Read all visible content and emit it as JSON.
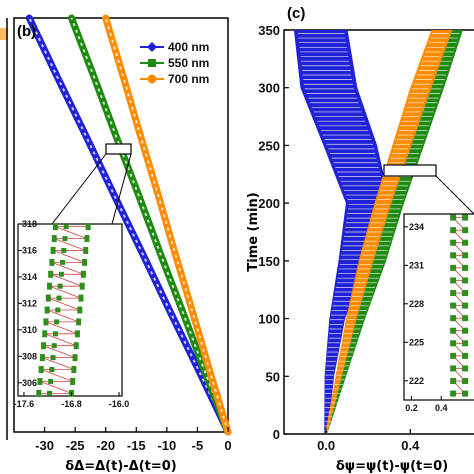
{
  "colors": {
    "blue": "#1f22d6",
    "green": "#1f8a12",
    "orange": "#ff8c00",
    "inset_marker": "#2f8f1c",
    "inset_line": "#d34040"
  },
  "chart_data": [
    {
      "id": "b",
      "type": "scatter",
      "panel_label": "(b)",
      "xlabel": "δΔ=Δ(t)-Δ(t=0)",
      "ylabel": "",
      "xlim": [
        -35,
        0
      ],
      "ylim": [
        0,
        350
      ],
      "xticks": [
        -30,
        -25,
        -20,
        -15,
        -10,
        -5,
        0
      ],
      "xtick_labels": [
        "-30",
        "-25",
        "-20",
        "-15",
        "-10",
        "-5",
        "0"
      ],
      "legend_position": "top-right",
      "series": [
        {
          "name": "400 nm",
          "color": "blue",
          "marker": "diamond",
          "x": [
            0,
            -4.6,
            -9.3,
            -13.9,
            -18.6,
            -23.2,
            -27.9,
            -32.5
          ],
          "y": [
            0,
            50,
            100,
            150,
            200,
            250,
            300,
            350
          ]
        },
        {
          "name": "550 nm",
          "color": "green",
          "marker": "square",
          "x": [
            0,
            -3.7,
            -7.3,
            -11.0,
            -14.6,
            -18.3,
            -21.9,
            -25.6
          ],
          "y": [
            0,
            50,
            100,
            150,
            200,
            250,
            300,
            350
          ]
        },
        {
          "name": "700 nm",
          "color": "orange",
          "marker": "circle",
          "x": [
            0,
            -2.9,
            -5.7,
            -8.6,
            -11.4,
            -14.3,
            -17.1,
            -20.0
          ],
          "y": [
            0,
            50,
            100,
            150,
            200,
            250,
            300,
            350
          ]
        }
      ],
      "inset": {
        "xlim": [
          -17.7,
          -15.95
        ],
        "ylim": [
          305,
          318
        ],
        "xticks": [
          -17.6,
          -16.8,
          -16.0
        ],
        "xtick_labels": [
          "-17.6",
          "-16.8",
          "-16.0"
        ],
        "yticks": [
          306,
          308,
          310,
          312,
          314,
          316,
          318
        ],
        "ytick_labels": [
          "306",
          "308",
          "310",
          "312",
          "314",
          "316",
          "318"
        ]
      }
    },
    {
      "id": "c",
      "type": "scatter",
      "panel_label": "(c)",
      "xlabel": "δψ=ψ(t)-ψ(t=0)",
      "ylabel": "Time (min)",
      "xlim": [
        -0.2,
        0.75
      ],
      "ylim": [
        0,
        350
      ],
      "xticks": [
        0.0,
        0.4
      ],
      "xtick_labels": [
        "0.0",
        "0.4"
      ],
      "yticks": [
        0,
        50,
        100,
        150,
        200,
        250,
        300,
        350
      ],
      "ytick_labels": [
        "0",
        "50",
        "100",
        "150",
        "200",
        "250",
        "300",
        "350"
      ],
      "series": [
        {
          "name": "400 nm",
          "color": "blue",
          "x": [
            0,
            0.02,
            0.06,
            0.14,
            0.22,
            0.14,
            0.04,
            0.0
          ],
          "spread": [
            0.01,
            0.03,
            0.05,
            0.09,
            0.14,
            0.17,
            0.18,
            0.17
          ],
          "y": [
            0,
            50,
            100,
            150,
            200,
            250,
            300,
            350
          ]
        },
        {
          "name": "550 nm",
          "color": "green",
          "x": [
            0,
            0.08,
            0.16,
            0.25,
            0.33,
            0.42,
            0.51,
            0.6
          ],
          "spread": [
            0.01,
            0.03,
            0.05,
            0.07,
            0.08,
            0.09,
            0.1,
            0.1
          ],
          "y": [
            0,
            50,
            100,
            150,
            200,
            250,
            300,
            350
          ]
        },
        {
          "name": "700 nm",
          "color": "orange",
          "x": [
            0,
            0.06,
            0.12,
            0.19,
            0.27,
            0.36,
            0.45,
            0.55
          ],
          "spread": [
            0.01,
            0.03,
            0.05,
            0.07,
            0.08,
            0.09,
            0.1,
            0.1
          ],
          "y": [
            0,
            50,
            100,
            150,
            200,
            250,
            300,
            350
          ]
        }
      ],
      "inset": {
        "xlim": [
          0.15,
          0.62
        ],
        "ylim": [
          220.5,
          235
        ],
        "xticks": [
          0.2,
          0.4
        ],
        "xtick_labels": [
          "0.2",
          "0.4"
        ],
        "yticks": [
          222,
          225,
          228,
          231,
          234
        ],
        "ytick_labels": [
          "222",
          "225",
          "228",
          "231",
          "234"
        ]
      }
    }
  ]
}
